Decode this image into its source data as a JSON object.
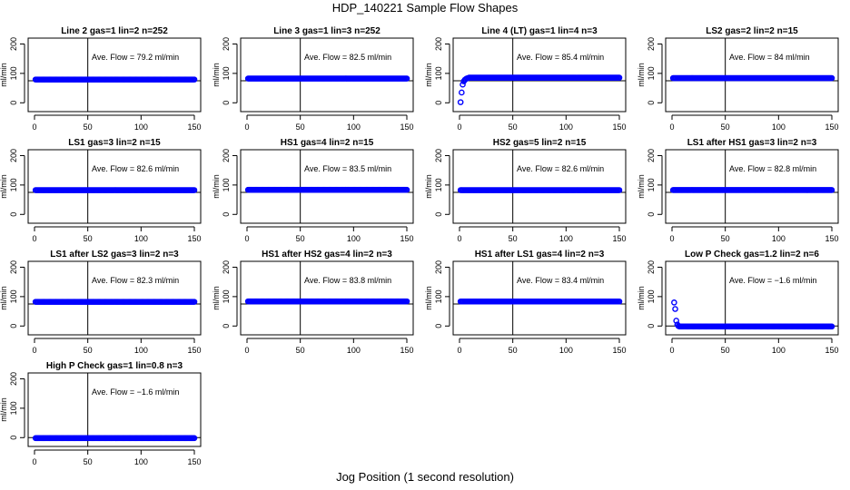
{
  "figure": {
    "title": "HDP_140221  Sample Flow Shapes",
    "xlabel": "Jog Position (1 second resolution)"
  },
  "style": {
    "point_color": "#0000ff",
    "line_color": "#000000"
  },
  "chart_data": [
    {
      "type": "scatter",
      "title": "Line 2 gas=1 lin=2 n=252",
      "annotation": "Ave. Flow = 79.2  ml/min",
      "ylabel": "ml/min",
      "xlim": [
        0,
        150
      ],
      "ylim": [
        -30,
        220
      ],
      "xticks": [
        0,
        50,
        100,
        150
      ],
      "yticks": [
        0,
        100,
        200
      ],
      "vline_x": 50,
      "hline_y": 75,
      "shape": "flat",
      "level": 79.2
    },
    {
      "type": "scatter",
      "title": "Line 3 gas=1 lin=3 n=252",
      "annotation": "Ave. Flow = 82.5  ml/min",
      "ylabel": "ml/min",
      "xlim": [
        0,
        150
      ],
      "ylim": [
        -30,
        220
      ],
      "xticks": [
        0,
        50,
        100,
        150
      ],
      "yticks": [
        0,
        100,
        200
      ],
      "vline_x": 50,
      "hline_y": 75,
      "shape": "flat",
      "level": 82.5
    },
    {
      "type": "scatter",
      "title": "Line 4 (LT) gas=1 lin=4 n=3",
      "annotation": "Ave. Flow = 85.4  ml/min",
      "ylabel": "ml/min",
      "xlim": [
        0,
        150
      ],
      "ylim": [
        -30,
        220
      ],
      "xticks": [
        0,
        50,
        100,
        150
      ],
      "yticks": [
        0,
        100,
        200
      ],
      "vline_x": 50,
      "hline_y": 75,
      "shape": "rise",
      "level": 85.4,
      "lead": [
        [
          1,
          2
        ],
        [
          2,
          35
        ],
        [
          3,
          62
        ],
        [
          4,
          73
        ],
        [
          5,
          78
        ],
        [
          6,
          81
        ],
        [
          7,
          83
        ],
        [
          8,
          84
        ]
      ]
    },
    {
      "type": "scatter",
      "title": "LS2 gas=2 lin=2 n=15",
      "annotation": "Ave. Flow = 84  ml/min",
      "ylabel": "ml/min",
      "xlim": [
        0,
        150
      ],
      "ylim": [
        -30,
        220
      ],
      "xticks": [
        0,
        50,
        100,
        150
      ],
      "yticks": [
        0,
        100,
        200
      ],
      "vline_x": 50,
      "hline_y": 75,
      "shape": "flat",
      "level": 84
    },
    {
      "type": "scatter",
      "title": "LS1 gas=3 lin=2 n=15",
      "annotation": "Ave. Flow = 82.6  ml/min",
      "ylabel": "ml/min",
      "xlim": [
        0,
        150
      ],
      "ylim": [
        -30,
        220
      ],
      "xticks": [
        0,
        50,
        100,
        150
      ],
      "yticks": [
        0,
        100,
        200
      ],
      "vline_x": 50,
      "hline_y": 75,
      "shape": "flat",
      "level": 82.6
    },
    {
      "type": "scatter",
      "title": "HS1 gas=4 lin=2 n=15",
      "annotation": "Ave. Flow = 83.5  ml/min",
      "ylabel": "ml/min",
      "xlim": [
        0,
        150
      ],
      "ylim": [
        -30,
        220
      ],
      "xticks": [
        0,
        50,
        100,
        150
      ],
      "yticks": [
        0,
        100,
        200
      ],
      "vline_x": 50,
      "hline_y": 75,
      "shape": "flat",
      "level": 83.5
    },
    {
      "type": "scatter",
      "title": "HS2 gas=5 lin=2 n=15",
      "annotation": "Ave. Flow = 82.6  ml/min",
      "ylabel": "ml/min",
      "xlim": [
        0,
        150
      ],
      "ylim": [
        -30,
        220
      ],
      "xticks": [
        0,
        50,
        100,
        150
      ],
      "yticks": [
        0,
        100,
        200
      ],
      "vline_x": 50,
      "hline_y": 75,
      "shape": "flat",
      "level": 82.6
    },
    {
      "type": "scatter",
      "title": "LS1 after HS1 gas=3 lin=2 n=3",
      "annotation": "Ave. Flow = 82.8  ml/min",
      "ylabel": "ml/min",
      "xlim": [
        0,
        150
      ],
      "ylim": [
        -30,
        220
      ],
      "xticks": [
        0,
        50,
        100,
        150
      ],
      "yticks": [
        0,
        100,
        200
      ],
      "vline_x": 50,
      "hline_y": 75,
      "shape": "flat",
      "level": 82.8
    },
    {
      "type": "scatter",
      "title": "LS1 after LS2 gas=3 lin=2 n=3",
      "annotation": "Ave. Flow = 82.3  ml/min",
      "ylabel": "ml/min",
      "xlim": [
        0,
        150
      ],
      "ylim": [
        -30,
        220
      ],
      "xticks": [
        0,
        50,
        100,
        150
      ],
      "yticks": [
        0,
        100,
        200
      ],
      "vline_x": 50,
      "hline_y": 75,
      "shape": "flat",
      "level": 82.3
    },
    {
      "type": "scatter",
      "title": "HS1 after HS2 gas=4 lin=2 n=3",
      "annotation": "Ave. Flow = 83.8  ml/min",
      "ylabel": "ml/min",
      "xlim": [
        0,
        150
      ],
      "ylim": [
        -30,
        220
      ],
      "xticks": [
        0,
        50,
        100,
        150
      ],
      "yticks": [
        0,
        100,
        200
      ],
      "vline_x": 50,
      "hline_y": 75,
      "shape": "flat",
      "level": 83.8
    },
    {
      "type": "scatter",
      "title": "HS1 after LS1 gas=4 lin=2 n=3",
      "annotation": "Ave. Flow = 83.4  ml/min",
      "ylabel": "ml/min",
      "xlim": [
        0,
        150
      ],
      "ylim": [
        -30,
        220
      ],
      "xticks": [
        0,
        50,
        100,
        150
      ],
      "yticks": [
        0,
        100,
        200
      ],
      "vline_x": 50,
      "hline_y": 75,
      "shape": "flat",
      "level": 83.4
    },
    {
      "type": "scatter",
      "title": "Low P Check gas=1.2 lin=2 n=6",
      "annotation": "Ave. Flow = −1.6  ml/min",
      "ylabel": "ml/min",
      "xlim": [
        0,
        150
      ],
      "ylim": [
        -30,
        220
      ],
      "xticks": [
        0,
        50,
        100,
        150
      ],
      "yticks": [
        0,
        100,
        200
      ],
      "vline_x": 50,
      "hline_y": 0,
      "shape": "drop",
      "level": -1.6,
      "lead": [
        [
          2,
          80
        ],
        [
          3,
          58
        ],
        [
          4,
          18
        ],
        [
          5,
          5
        ],
        [
          6,
          0
        ]
      ]
    },
    {
      "type": "scatter",
      "title": "High P Check gas=1 lin=0.8 n=3",
      "annotation": "Ave. Flow = −1.6  ml/min",
      "ylabel": "ml/min",
      "xlim": [
        0,
        150
      ],
      "ylim": [
        -30,
        220
      ],
      "xticks": [
        0,
        50,
        100,
        150
      ],
      "yticks": [
        0,
        100,
        200
      ],
      "vline_x": 50,
      "hline_y": 0,
      "shape": "flat",
      "level": -1.6
    }
  ]
}
